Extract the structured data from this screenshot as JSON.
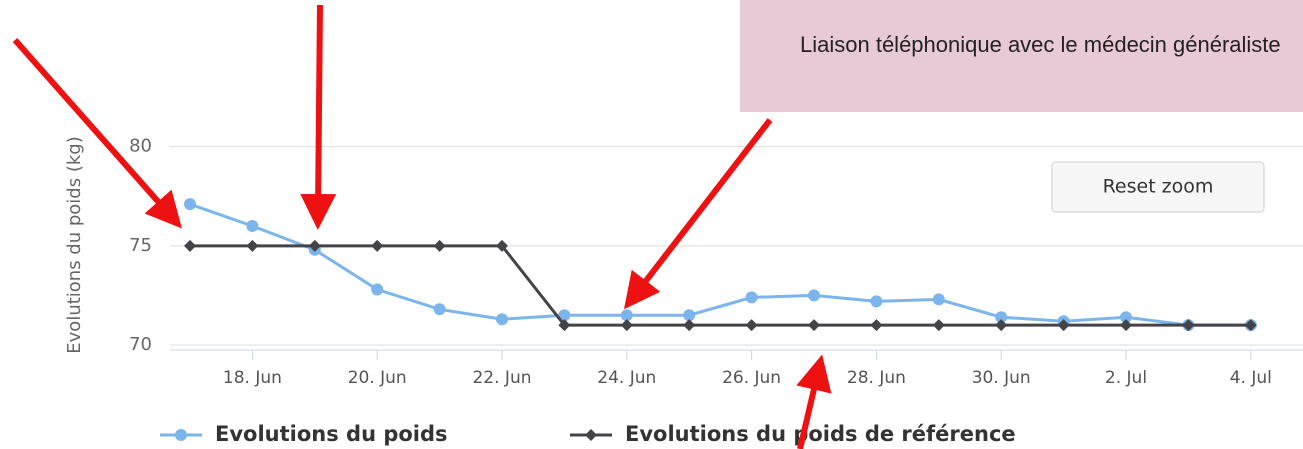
{
  "chart_data": {
    "type": "line",
    "y_axis_label": "Evolutions du poids (kg)",
    "categories": [
      null,
      "18. Jun",
      null,
      "20. Jun",
      null,
      "22. Jun",
      null,
      "24. Jun",
      null,
      "26. Jun",
      null,
      "28. Jun",
      null,
      "30. Jun",
      null,
      "2. Jul",
      null,
      "4. Jul"
    ],
    "series": [
      {
        "name": "Evolutions du poids",
        "color": "#7cb5ec",
        "values": [
          77.1,
          76.0,
          74.8,
          72.8,
          71.8,
          71.3,
          71.5,
          71.5,
          71.5,
          72.4,
          72.5,
          72.2,
          72.3,
          71.4,
          71.2,
          71.4,
          71.0,
          71.0
        ]
      },
      {
        "name": "Evolutions du poids de référence",
        "color": "#434348",
        "values": [
          75,
          75,
          75,
          75,
          75,
          75,
          71,
          71,
          71,
          71,
          71,
          71,
          71,
          71,
          71,
          71,
          71,
          71
        ]
      }
    ],
    "ylim": [
      70,
      82
    ],
    "yticks": [
      70,
      75,
      80
    ],
    "grid": true,
    "annotation": "Liaison téléphonique  avec le médecin généraliste",
    "button": "Reset zoom"
  }
}
